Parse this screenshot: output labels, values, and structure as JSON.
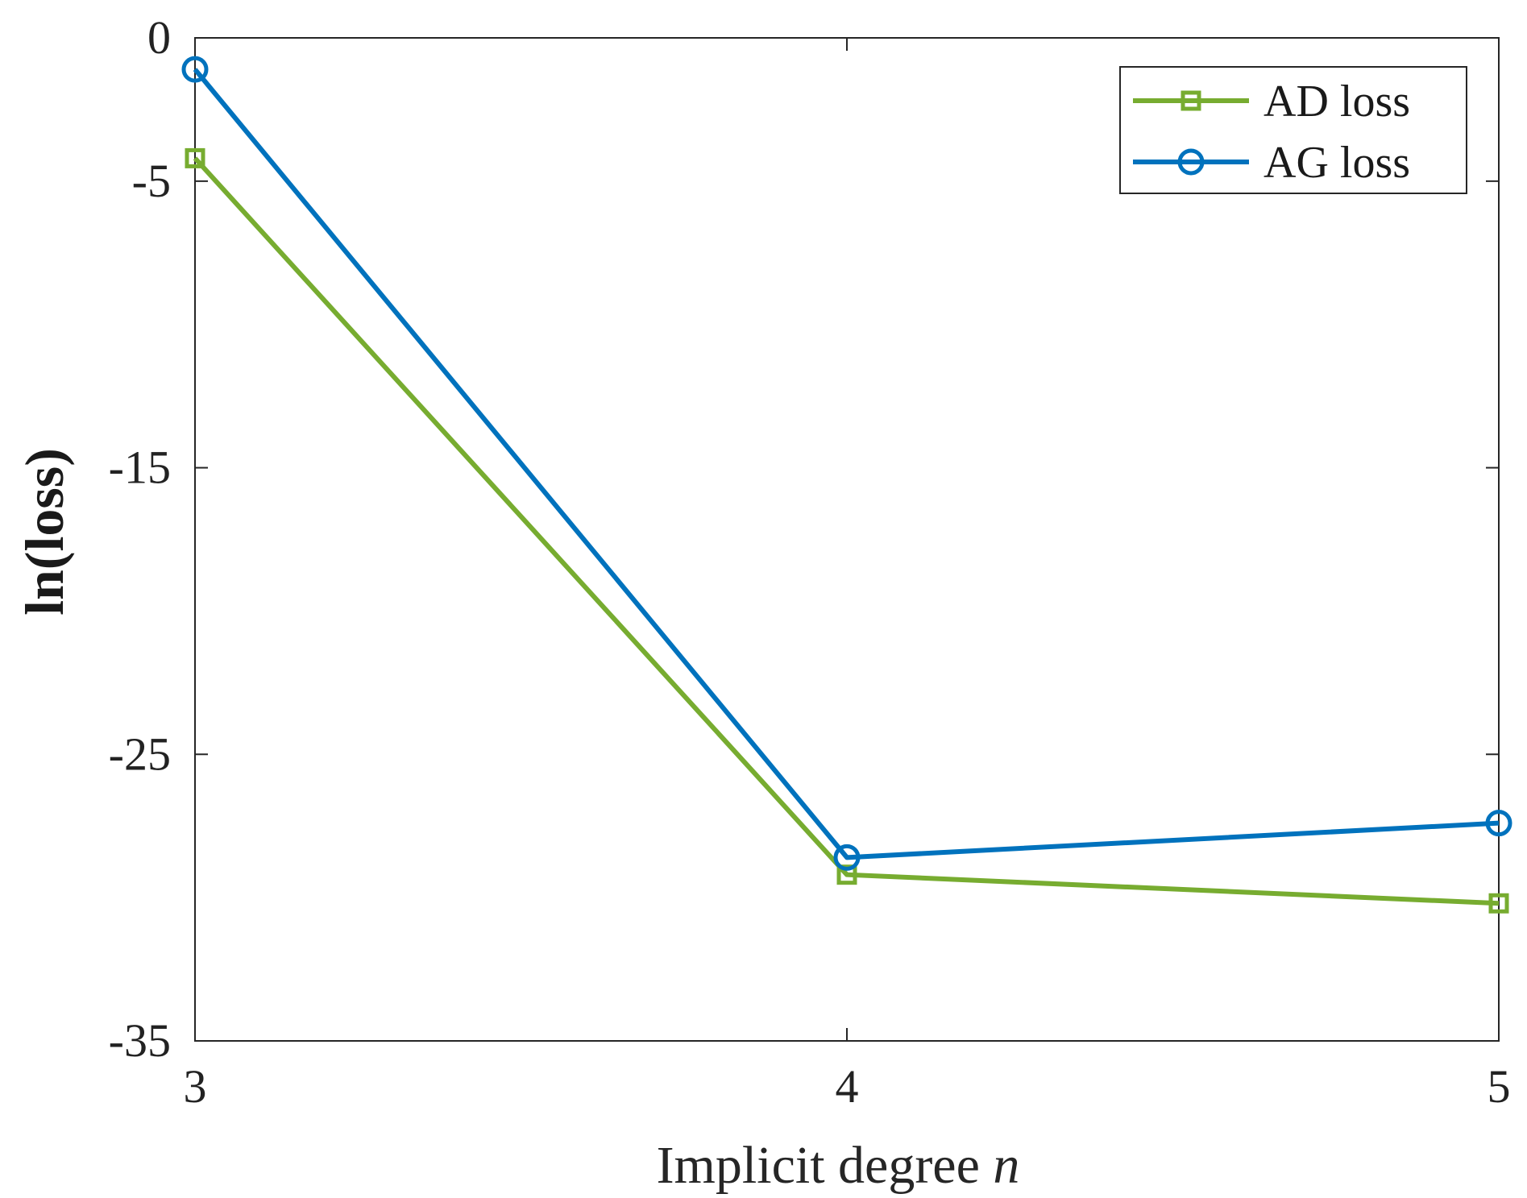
{
  "chart_data": {
    "type": "line",
    "title": "",
    "xlabel": "Implicit degree",
    "xlabel_var": "n",
    "ylabel": "ln(loss)",
    "x": [
      3,
      4,
      5
    ],
    "xticks": [
      "3",
      "4",
      "5"
    ],
    "xlim": [
      3,
      5
    ],
    "ylim": [
      -35,
      0
    ],
    "yticks": [
      0,
      -5,
      -15,
      -25,
      -35
    ],
    "ytick_labels": [
      "0",
      "-5",
      "-15",
      "-25",
      "-35"
    ],
    "grid": false,
    "legend_position": "top-right",
    "series": [
      {
        "name": "AD loss",
        "marker": "square",
        "color": "#77AC30",
        "values": [
          -4.2,
          -29.2,
          -30.2
        ]
      },
      {
        "name": "AG loss",
        "marker": "circle",
        "color": "#0072BD",
        "values": [
          -1.1,
          -28.6,
          -27.4
        ]
      }
    ]
  }
}
